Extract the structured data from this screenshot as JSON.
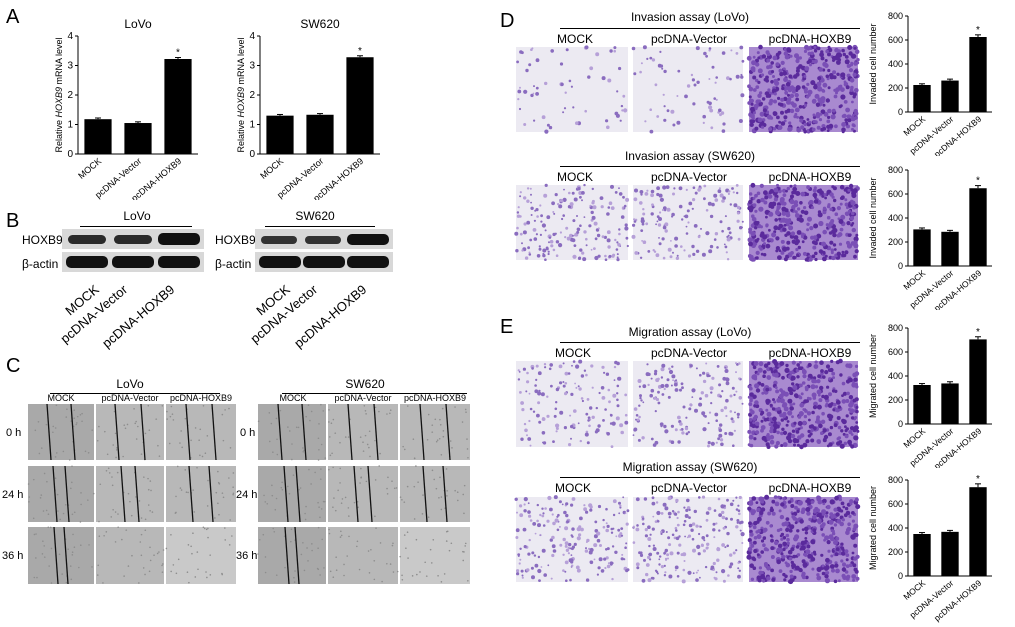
{
  "panels": {
    "A": "A",
    "B": "B",
    "C": "C",
    "D": "D",
    "E": "E"
  },
  "colors": {
    "bar": "#000000",
    "stain_light": "#b9a6d3",
    "stain_dense": "#6a3aa8",
    "stain_bg": "#eceaf2",
    "scratch_bg": "#bdbdbd",
    "blot_band": "#1c1c1c",
    "blot_bg": "#d6d6d6"
  },
  "chart_data": [
    {
      "id": "a-lovo",
      "type": "bar",
      "title": "LoVo",
      "ylabel_pre": "Relative ",
      "ylabel_italic": "HOXB9",
      "ylabel_post": " mRNA level",
      "ylim": [
        0,
        4
      ],
      "yticks": [
        "0",
        "1",
        "2",
        "3",
        "4"
      ],
      "categories": [
        "MOCK",
        "pcDNA-Vector",
        "pcDNA-HOXB9"
      ],
      "values": [
        1.18,
        1.05,
        3.22
      ],
      "errors": [
        0.04,
        0.04,
        0.05
      ],
      "sig": [
        false,
        false,
        true
      ],
      "sig_mark": "*"
    },
    {
      "id": "a-sw620",
      "type": "bar",
      "title": "SW620",
      "ylabel_pre": "Relative ",
      "ylabel_italic": "HOXB9",
      "ylabel_post": " mRNA level",
      "ylim": [
        0,
        4
      ],
      "yticks": [
        "0",
        "1",
        "2",
        "3",
        "4"
      ],
      "categories": [
        "MOCK",
        "pcDNA-Vector",
        "pcDNA-HOXB9"
      ],
      "values": [
        1.3,
        1.33,
        3.28
      ],
      "errors": [
        0.04,
        0.04,
        0.05
      ],
      "sig": [
        false,
        false,
        true
      ],
      "sig_mark": "*"
    },
    {
      "id": "d-lovo",
      "type": "bar",
      "title": "",
      "ylabel_pre": "Invaded cell number",
      "ylabel_italic": "",
      "ylabel_post": "",
      "ylim": [
        0,
        800
      ],
      "yticks": [
        "0",
        "200",
        "400",
        "600",
        "800"
      ],
      "categories": [
        "MOCK",
        "pcDNA-Vector",
        "pcDNA-HOXB9"
      ],
      "values": [
        225,
        262,
        625
      ],
      "errors": [
        10,
        12,
        18
      ],
      "sig": [
        false,
        false,
        true
      ],
      "sig_mark": "*"
    },
    {
      "id": "d-sw620",
      "type": "bar",
      "title": "",
      "ylabel_pre": "Invaded cell number",
      "ylabel_italic": "",
      "ylabel_post": "",
      "ylim": [
        0,
        800
      ],
      "yticks": [
        "0",
        "200",
        "400",
        "600",
        "800"
      ],
      "categories": [
        "MOCK",
        "pcDNA-Vector",
        "pcDNA-HOXB9"
      ],
      "values": [
        305,
        285,
        648
      ],
      "errors": [
        12,
        12,
        22
      ],
      "sig": [
        false,
        false,
        true
      ],
      "sig_mark": "*"
    },
    {
      "id": "e-lovo",
      "type": "bar",
      "title": "",
      "ylabel_pre": "Migrated cell number",
      "ylabel_italic": "",
      "ylabel_post": "",
      "ylim": [
        0,
        800
      ],
      "yticks": [
        "0",
        "200",
        "400",
        "600",
        "800"
      ],
      "categories": [
        "MOCK",
        "pcDNA-Vector",
        "pcDNA-HOXB9"
      ],
      "values": [
        325,
        338,
        705
      ],
      "errors": [
        12,
        14,
        22
      ],
      "sig": [
        false,
        false,
        true
      ],
      "sig_mark": "*"
    },
    {
      "id": "e-sw620",
      "type": "bar",
      "title": "",
      "ylabel_pre": "Migrated cell number",
      "ylabel_italic": "",
      "ylabel_post": "",
      "ylim": [
        0,
        800
      ],
      "yticks": [
        "0",
        "200",
        "400",
        "600",
        "800"
      ],
      "categories": [
        "MOCK",
        "pcDNA-Vector",
        "pcDNA-HOXB9"
      ],
      "values": [
        350,
        368,
        740
      ],
      "errors": [
        12,
        12,
        28
      ],
      "sig": [
        false,
        false,
        true
      ],
      "sig_mark": "*"
    }
  ],
  "western": {
    "lovo_title": "LoVo",
    "sw_title": "SW620",
    "row1": "HOXB9",
    "row2": "β-actin",
    "lanes": [
      "MOCK",
      "pcDNA-Vector",
      "pcDNA-HOXB9"
    ]
  },
  "scratch": {
    "lovo_title": "LoVo",
    "sw_title": "SW620",
    "cols": [
      "MOCK",
      "pcDNA-Vector",
      "pcDNA-HOXB9"
    ],
    "rows": [
      "0 h",
      "24 h",
      "36 h"
    ]
  },
  "transwell": {
    "d_title1": "Invasion assay (LoVo)",
    "d_title2": "Invasion assay (SW620)",
    "e_title1": "Migration assay (LoVo)",
    "e_title2": "Migration assay (SW620)",
    "cols": [
      "MOCK",
      "pcDNA-Vector",
      "pcDNA-HOXB9"
    ]
  }
}
